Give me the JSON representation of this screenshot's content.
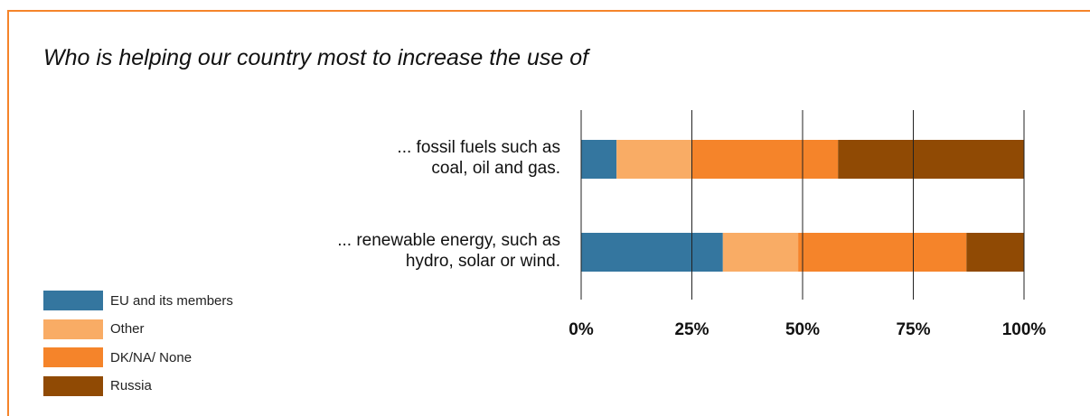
{
  "chart_data": {
    "type": "bar",
    "orientation": "horizontal",
    "stacked": true,
    "title": "Who is helping our country most to increase the use of",
    "categories": [
      [
        "... fossil fuels such as",
        "coal, oil and gas."
      ],
      [
        "... renewable energy, such as",
        "hydro, solar or wind."
      ]
    ],
    "series": [
      {
        "name": "EU and its members",
        "color": "#34769f",
        "values": [
          8,
          32
        ]
      },
      {
        "name": "Other",
        "color": "#f9ac65",
        "values": [
          17,
          17
        ]
      },
      {
        "name": "DK/NA/ None",
        "color": "#f5842a",
        "values": [
          33,
          38
        ]
      },
      {
        "name": "Russia",
        "color": "#904a04",
        "values": [
          42,
          13
        ]
      }
    ],
    "xlim": [
      0,
      100
    ],
    "xticks": [
      "0%",
      "25%",
      "50%",
      "75%",
      "100%"
    ],
    "grid": true,
    "legend_position": "bottom-left"
  }
}
